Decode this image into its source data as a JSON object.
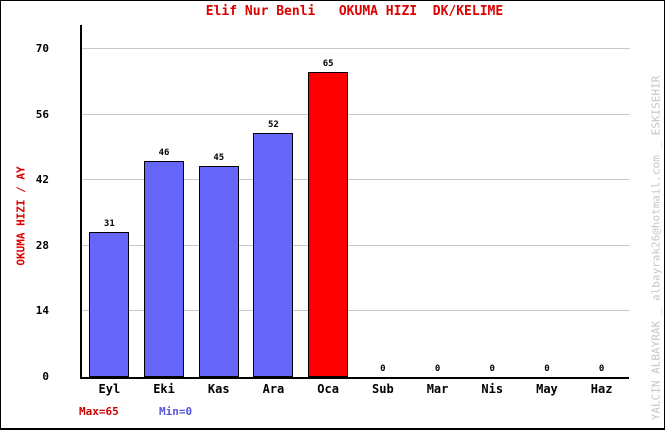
{
  "title": "Elif Nur Benli   OKUMA HIZI  DK/KELIME",
  "annotations": {
    "max_label": "Max=65",
    "min_label": "Min=0"
  },
  "watermark": "YALCIN ALBAYRAK _ albayrak26@hotmail.com _ ESKISEHIR",
  "colors": {
    "title": "#dd0000",
    "y_axis_title": "#dd0000",
    "bar_fill": "#6666fa",
    "bar_highlight": "#ff0000",
    "bar_outline": "#000000",
    "gridline": "#c8c8c8",
    "axis": "#000000",
    "max_label": "#cc0000",
    "min_label": "#5555dd",
    "watermark": "#c6c6c6"
  },
  "chart_data": {
    "type": "bar",
    "title": "Elif Nur Benli   OKUMA HIZI  DK/KELIME",
    "xlabel": "",
    "ylabel": "OKUMA HIZI / AY",
    "categories": [
      "Eyl",
      "Eki",
      "Kas",
      "Ara",
      "Oca",
      "Sub",
      "Mar",
      "Nis",
      "May",
      "Haz"
    ],
    "values": [
      31,
      46,
      45,
      52,
      65,
      0,
      0,
      0,
      0,
      0
    ],
    "y_ticks": [
      0,
      14,
      28,
      42,
      56,
      70
    ],
    "ylim": [
      0,
      70
    ],
    "grid": true,
    "legend": "none",
    "highlight_index": 4,
    "max": 65,
    "min": 0
  }
}
